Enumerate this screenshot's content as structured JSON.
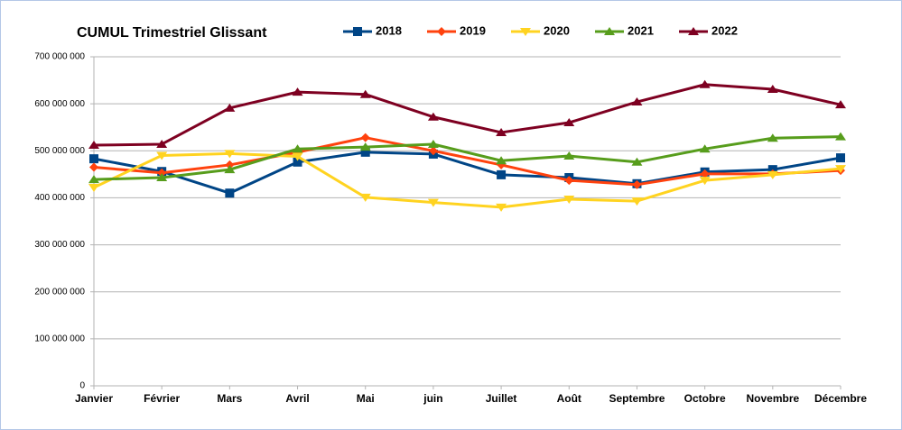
{
  "chart_data": {
    "type": "line",
    "title": "CUMUL Trimestriel Glissant",
    "categories": [
      "Janvier",
      "Février",
      "Mars",
      "Avril",
      "Mai",
      "juin",
      "Juillet",
      "Août",
      "Septembre",
      "Octobre",
      "Novembre",
      "Décembre"
    ],
    "series": [
      {
        "name": "2018",
        "color": "#004586",
        "marker": "square",
        "values": [
          483000000,
          456000000,
          410000000,
          476000000,
          497000000,
          493000000,
          449000000,
          443000000,
          430000000,
          455000000,
          460000000,
          485000000
        ]
      },
      {
        "name": "2019",
        "color": "#ff420e",
        "marker": "diamond",
        "values": [
          465000000,
          453000000,
          470000000,
          497000000,
          528000000,
          500000000,
          470000000,
          437000000,
          428000000,
          451000000,
          451000000,
          458000000
        ]
      },
      {
        "name": "2020",
        "color": "#ffd320",
        "marker": "triangle-down",
        "values": [
          422000000,
          490000000,
          494000000,
          488000000,
          401000000,
          390000000,
          380000000,
          397000000,
          393000000,
          437000000,
          449000000,
          462000000
        ]
      },
      {
        "name": "2021",
        "color": "#579d1c",
        "marker": "triangle",
        "values": [
          439000000,
          443000000,
          460000000,
          504000000,
          508000000,
          514000000,
          479000000,
          489000000,
          476000000,
          504000000,
          527000000,
          530000000
        ]
      },
      {
        "name": "2022",
        "color": "#7e0021",
        "marker": "triangle",
        "values": [
          512000000,
          514000000,
          591000000,
          625000000,
          620000000,
          572000000,
          539000000,
          560000000,
          604000000,
          641000000,
          631000000,
          598000000
        ]
      }
    ],
    "ylim": [
      0,
      700000000
    ],
    "yticks": [
      0,
      {
        "value": 100000000,
        "label": "100 000 000"
      },
      {
        "value": 200000000,
        "label": "200 000 000"
      },
      {
        "value": 300000000,
        "label": "300 000 000"
      },
      {
        "value": 400000000,
        "label": "400 000 000"
      },
      {
        "value": 500000000,
        "label": "500 000 000"
      },
      {
        "value": 600000000,
        "label": "600 000 000"
      },
      {
        "value": 700000000,
        "label": "700 000 000"
      }
    ],
    "grid": true,
    "legend": "top",
    "title_color": "#ff7f27"
  }
}
